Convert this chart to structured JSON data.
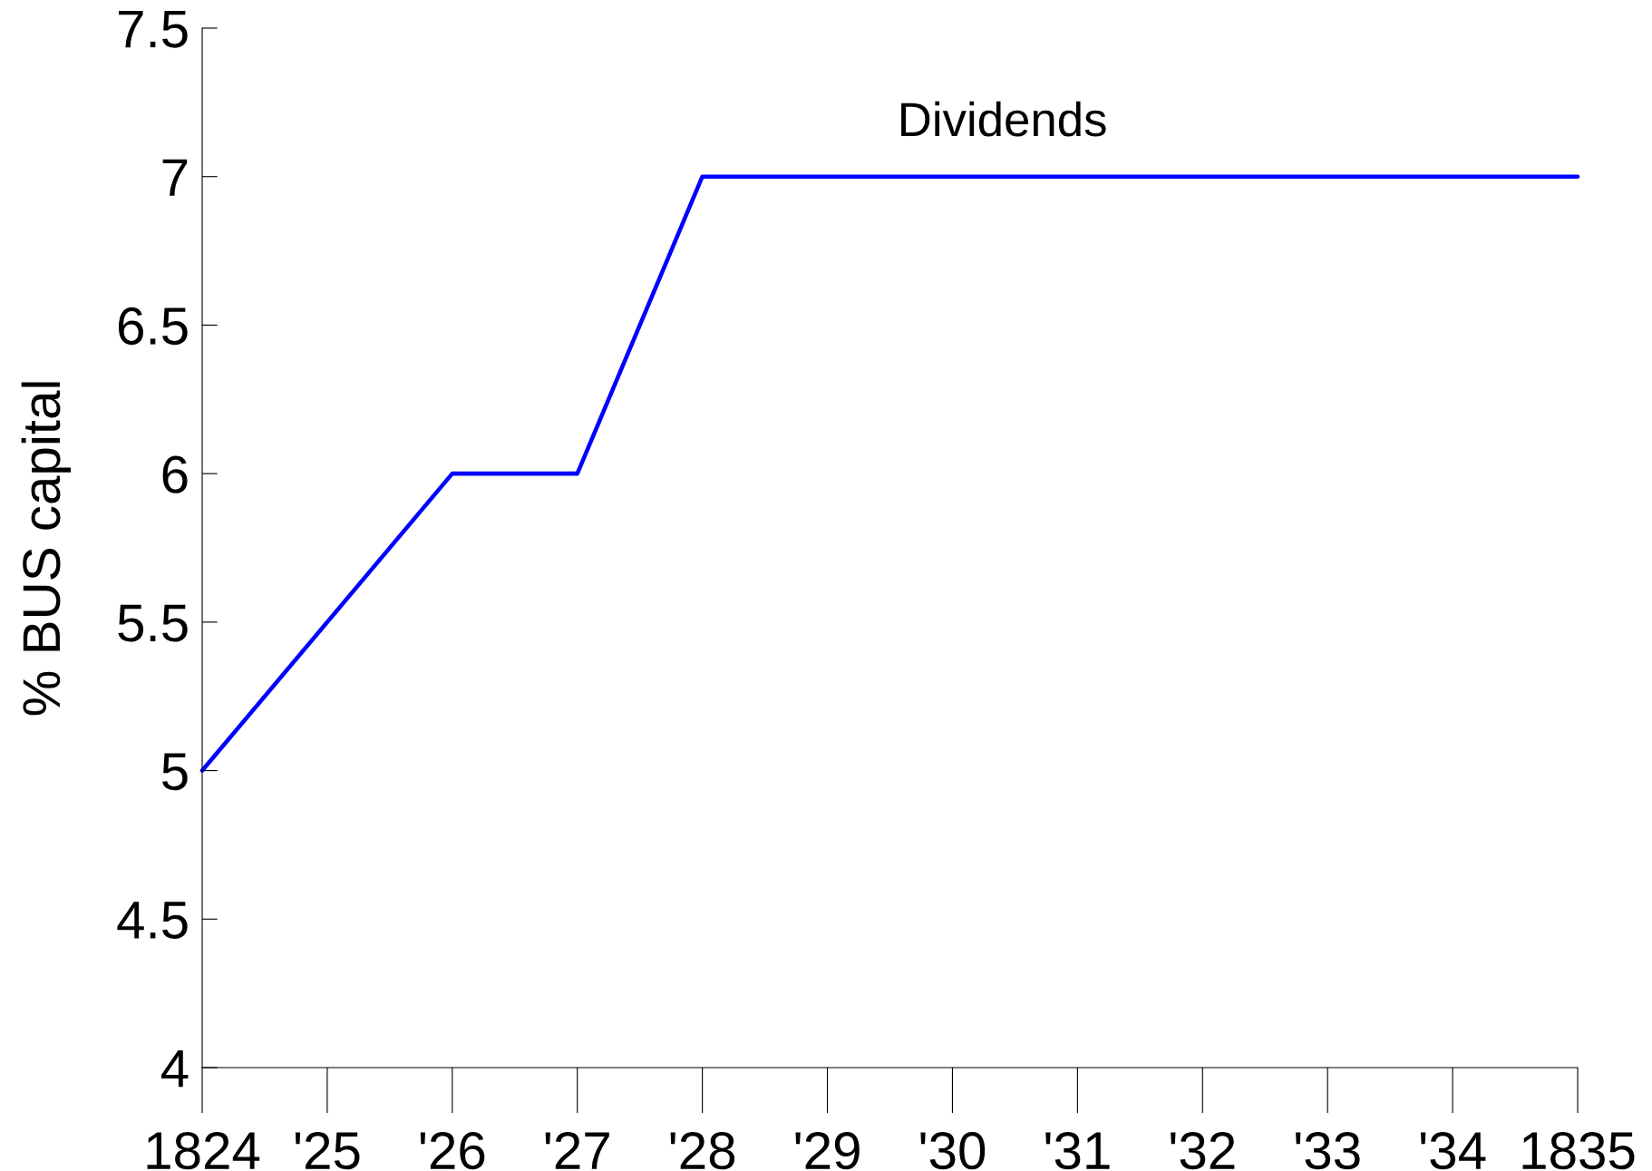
{
  "chart_data": {
    "type": "line",
    "ylabel": "% BUS capital",
    "x": [
      1824,
      1826,
      1827,
      1828,
      1835
    ],
    "series": [
      {
        "name": "Dividends",
        "color": "#0000ff",
        "values": [
          5,
          6,
          6,
          7,
          7
        ]
      }
    ],
    "xlim": [
      1824,
      1835
    ],
    "xticks": [
      {
        "value": 1824,
        "label": "1824"
      },
      {
        "value": 1825,
        "label": "'25"
      },
      {
        "value": 1826,
        "label": "'26"
      },
      {
        "value": 1827,
        "label": "'27"
      },
      {
        "value": 1828,
        "label": "'28"
      },
      {
        "value": 1829,
        "label": "'29"
      },
      {
        "value": 1830,
        "label": "'30"
      },
      {
        "value": 1831,
        "label": "'31"
      },
      {
        "value": 1832,
        "label": "'32"
      },
      {
        "value": 1833,
        "label": "'33"
      },
      {
        "value": 1834,
        "label": "'34"
      },
      {
        "value": 1835,
        "label": "1835"
      }
    ],
    "ylim": [
      4,
      7.5
    ],
    "yticks": [
      4,
      4.5,
      5,
      5.5,
      6,
      6.5,
      7,
      7.5
    ],
    "grid": false,
    "legend": false,
    "line_style": "solid"
  }
}
